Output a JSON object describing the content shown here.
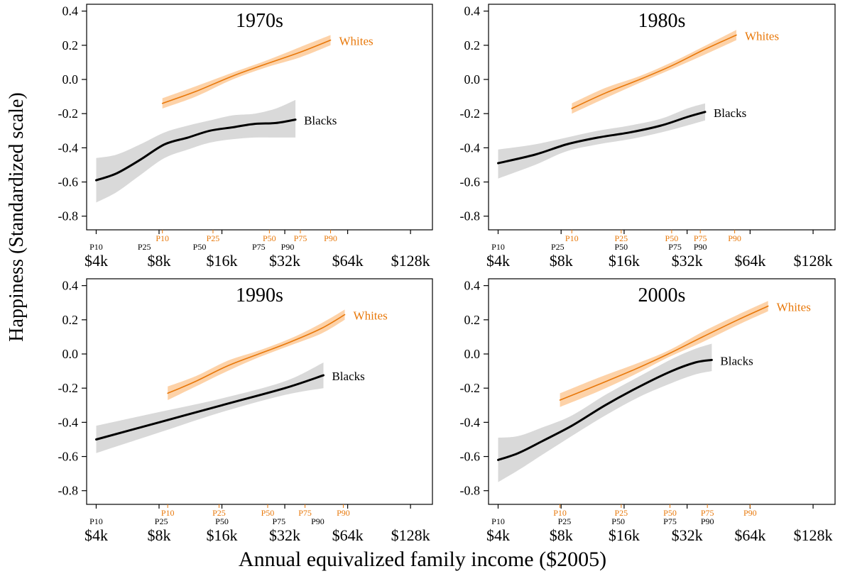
{
  "figure": {
    "ylabel": "Happiness (Standardized scale)",
    "xlabel": "Annual equivalized family income ($2005)"
  },
  "colors": {
    "whites": "#e8780a",
    "whites_band": "#fdd2a8",
    "blacks": "#000000",
    "blacks_band": "#d9d9d9",
    "axis": "#000000"
  },
  "chart_data": [
    {
      "type": "line",
      "title": "1970s",
      "xscale": "log2",
      "xlim": [
        3600,
        163000
      ],
      "ylim": [
        -0.88,
        0.44
      ],
      "yticks": [
        0.4,
        0.2,
        0.0,
        -0.2,
        -0.4,
        -0.6,
        -0.8
      ],
      "ytick_labels": [
        "0.4",
        "0.2",
        "0.0",
        "-0.2",
        "-0.4",
        "-0.6",
        "-0.8"
      ],
      "xticks": [
        4000,
        8000,
        16000,
        32000,
        64000,
        128000
      ],
      "xtick_labels": [
        "$4k",
        "$8k",
        "$16k",
        "$32k",
        "$64k",
        "$128k"
      ],
      "series": [
        {
          "name": "Whites",
          "x": [
            8300,
            12000,
            18000,
            26000,
            38000,
            53000
          ],
          "y": [
            -0.14,
            -0.07,
            0.02,
            0.09,
            0.16,
            0.23
          ],
          "lo": [
            -0.17,
            -0.1,
            0.0,
            0.07,
            0.13,
            0.2
          ],
          "hi": [
            -0.11,
            -0.04,
            0.04,
            0.11,
            0.19,
            0.26
          ]
        },
        {
          "name": "Blacks",
          "x": [
            4000,
            5000,
            6500,
            8500,
            11000,
            14000,
            18000,
            23000,
            29000,
            36000
          ],
          "y": [
            -0.59,
            -0.55,
            -0.47,
            -0.38,
            -0.34,
            -0.3,
            -0.28,
            -0.26,
            -0.255,
            -0.235
          ],
          "lo": [
            -0.72,
            -0.66,
            -0.56,
            -0.46,
            -0.41,
            -0.37,
            -0.35,
            -0.34,
            -0.34,
            -0.34
          ],
          "hi": [
            -0.46,
            -0.44,
            -0.38,
            -0.31,
            -0.27,
            -0.24,
            -0.21,
            -0.2,
            -0.17,
            -0.12
          ]
        }
      ],
      "percentiles": {
        "Whites": {
          "labels": [
            "P10",
            "P25",
            "P50",
            "P75",
            "P90"
          ],
          "x": [
            8300,
            14500,
            27000,
            38000,
            53000
          ]
        },
        "Blacks": {
          "labels": [
            "P10",
            "P25",
            "P50",
            "P75",
            "P90"
          ],
          "x": [
            4000,
            6800,
            12500,
            24000,
            33000
          ]
        }
      }
    },
    {
      "type": "line",
      "title": "1980s",
      "xscale": "log2",
      "xlim": [
        3600,
        163000
      ],
      "ylim": [
        -0.88,
        0.44
      ],
      "yticks": [
        0.4,
        0.2,
        0.0,
        -0.2,
        -0.4,
        -0.6,
        -0.8
      ],
      "ytick_labels": [
        "0.4",
        "0.2",
        "0.0",
        "-0.2",
        "-0.4",
        "-0.6",
        "-0.8"
      ],
      "xticks": [
        4000,
        8000,
        16000,
        32000,
        64000,
        128000
      ],
      "xtick_labels": [
        "$4k",
        "$8k",
        "$16k",
        "$32k",
        "$64k",
        "$128k"
      ],
      "series": [
        {
          "name": "Whites",
          "x": [
            9000,
            13000,
            19000,
            27000,
            38000,
            55000
          ],
          "y": [
            -0.17,
            -0.08,
            0.0,
            0.08,
            0.17,
            0.26
          ],
          "lo": [
            -0.2,
            -0.11,
            -0.02,
            0.06,
            0.14,
            0.23
          ],
          "hi": [
            -0.14,
            -0.05,
            0.02,
            0.1,
            0.19,
            0.29
          ]
        },
        {
          "name": "Blacks",
          "x": [
            4000,
            6000,
            8500,
            12000,
            17000,
            24000,
            32000,
            39000
          ],
          "y": [
            -0.49,
            -0.44,
            -0.38,
            -0.34,
            -0.31,
            -0.27,
            -0.22,
            -0.19
          ],
          "lo": [
            -0.58,
            -0.5,
            -0.42,
            -0.38,
            -0.35,
            -0.31,
            -0.27,
            -0.24
          ],
          "hi": [
            -0.41,
            -0.38,
            -0.34,
            -0.3,
            -0.27,
            -0.23,
            -0.17,
            -0.14
          ]
        }
      ],
      "percentiles": {
        "Whites": {
          "labels": [
            "P10",
            "P25",
            "P50",
            "P75",
            "P90"
          ],
          "x": [
            9000,
            15500,
            27000,
            37000,
            54000
          ]
        },
        "Blacks": {
          "labels": [
            "P10",
            "P25",
            "P50",
            "P75",
            "P90"
          ],
          "x": [
            4000,
            7700,
            15500,
            28000,
            37000
          ]
        }
      }
    },
    {
      "type": "line",
      "title": "1990s",
      "xscale": "log2",
      "xlim": [
        3600,
        163000
      ],
      "ylim": [
        -0.88,
        0.44
      ],
      "yticks": [
        0.4,
        0.2,
        0.0,
        -0.2,
        -0.4,
        -0.6,
        -0.8
      ],
      "ytick_labels": [
        "0.4",
        "0.2",
        "0.0",
        "-0.2",
        "-0.4",
        "-0.6",
        "-0.8"
      ],
      "xticks": [
        4000,
        8000,
        16000,
        32000,
        64000,
        128000
      ],
      "xtick_labels": [
        "$4k",
        "$8k",
        "$16k",
        "$32k",
        "$64k",
        "$128k"
      ],
      "series": [
        {
          "name": "Whites",
          "x": [
            8800,
            12000,
            17000,
            24000,
            34000,
            48000,
            62000
          ],
          "y": [
            -0.23,
            -0.16,
            -0.07,
            0.0,
            0.07,
            0.15,
            0.23
          ],
          "lo": [
            -0.27,
            -0.19,
            -0.1,
            -0.02,
            0.05,
            0.12,
            0.2
          ],
          "hi": [
            -0.19,
            -0.13,
            -0.04,
            0.02,
            0.09,
            0.18,
            0.26
          ]
        },
        {
          "name": "Blacks",
          "x": [
            4000,
            8000,
            16000,
            32000,
            49000
          ],
          "y": [
            -0.5,
            -0.4,
            -0.3,
            -0.2,
            -0.125
          ],
          "lo": [
            -0.58,
            -0.46,
            -0.34,
            -0.24,
            -0.2
          ],
          "hi": [
            -0.42,
            -0.34,
            -0.26,
            -0.16,
            -0.05
          ]
        }
      ],
      "percentiles": {
        "Whites": {
          "labels": [
            "P10",
            "P25",
            "P50",
            "P75",
            "P90"
          ],
          "x": [
            8800,
            15500,
            26500,
            40000,
            61000
          ]
        },
        "Blacks": {
          "labels": [
            "P10",
            "P25",
            "P50",
            "P75",
            "P90"
          ],
          "x": [
            4000,
            8200,
            16000,
            30000,
            46000
          ]
        }
      }
    },
    {
      "type": "line",
      "title": "2000s",
      "xscale": "log2",
      "xlim": [
        3600,
        163000
      ],
      "ylim": [
        -0.88,
        0.44
      ],
      "yticks": [
        0.4,
        0.2,
        0.0,
        -0.2,
        -0.4,
        -0.6,
        -0.8
      ],
      "ytick_labels": [
        "0.4",
        "0.2",
        "0.0",
        "-0.2",
        "-0.4",
        "-0.6",
        "-0.8"
      ],
      "xticks": [
        4000,
        8000,
        16000,
        32000,
        64000,
        128000
      ],
      "xtick_labels": [
        "$4k",
        "$8k",
        "$16k",
        "$32k",
        "$64k",
        "$128k"
      ],
      "series": [
        {
          "name": "Whites",
          "x": [
            7900,
            12000,
            18000,
            26000,
            38000,
            56000,
            78000
          ],
          "y": [
            -0.27,
            -0.18,
            -0.09,
            0.0,
            0.1,
            0.2,
            0.28
          ],
          "lo": [
            -0.31,
            -0.22,
            -0.12,
            -0.02,
            0.07,
            0.17,
            0.25
          ],
          "hi": [
            -0.23,
            -0.14,
            -0.06,
            0.02,
            0.13,
            0.23,
            0.31
          ]
        },
        {
          "name": "Blacks",
          "x": [
            4000,
            5000,
            6500,
            9000,
            13000,
            19000,
            27000,
            35000,
            42000
          ],
          "y": [
            -0.62,
            -0.58,
            -0.51,
            -0.42,
            -0.3,
            -0.19,
            -0.1,
            -0.05,
            -0.035
          ],
          "lo": [
            -0.75,
            -0.68,
            -0.59,
            -0.48,
            -0.36,
            -0.25,
            -0.17,
            -0.12,
            -0.1
          ],
          "hi": [
            -0.49,
            -0.48,
            -0.43,
            -0.36,
            -0.24,
            -0.13,
            -0.03,
            0.03,
            0.06
          ]
        }
      ],
      "percentiles": {
        "Whites": {
          "labels": [
            "P10",
            "P25",
            "P50",
            "P75",
            "P90"
          ],
          "x": [
            7900,
            15500,
            26500,
            40000,
            64000
          ]
        },
        "Blacks": {
          "labels": [
            "P10",
            "P25",
            "P50",
            "P75",
            "P90"
          ],
          "x": [
            4000,
            8300,
            15000,
            26500,
            40000
          ]
        }
      }
    }
  ]
}
